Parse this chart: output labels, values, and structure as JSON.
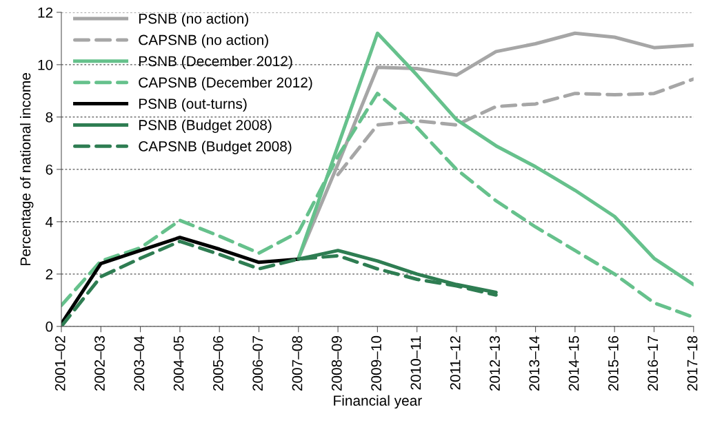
{
  "chart_data": {
    "type": "line",
    "xlabel": "Financial year",
    "ylabel": "Percentage of national income",
    "categories": [
      "2001–02",
      "2002–03",
      "2003–04",
      "2004–05",
      "2005–06",
      "2006–07",
      "2007–08",
      "2008–09",
      "2009–10",
      "2010–11",
      "2011–12",
      "2012–13",
      "2013–14",
      "2014–15",
      "2015–16",
      "2016–17",
      "2017–18"
    ],
    "series": [
      {
        "name": "PSNB (no action)",
        "color": "#a6a6a6",
        "line_style": "solid",
        "values": [
          null,
          null,
          null,
          null,
          null,
          null,
          2.6,
          6.2,
          9.9,
          9.85,
          9.6,
          10.5,
          10.8,
          11.2,
          11.05,
          10.65,
          10.75
        ]
      },
      {
        "name": "CAPSNB (no action)",
        "color": "#a6a6a6",
        "line_style": "dashed",
        "values": [
          null,
          null,
          null,
          null,
          null,
          null,
          null,
          5.8,
          7.7,
          7.85,
          7.7,
          8.4,
          8.5,
          8.9,
          8.85,
          8.9,
          9.45
        ]
      },
      {
        "name": "PSNB (December 2012)",
        "color": "#66c18c",
        "line_style": "solid",
        "values": [
          null,
          null,
          null,
          null,
          null,
          null,
          2.6,
          6.9,
          11.2,
          9.6,
          7.9,
          6.9,
          6.1,
          5.2,
          4.2,
          2.6,
          1.6
        ]
      },
      {
        "name": "CAPSNB (December 2012)",
        "color": "#66c18c",
        "line_style": "dashed",
        "values": [
          0.8,
          2.5,
          3.0,
          4.05,
          3.45,
          2.8,
          3.6,
          6.5,
          8.9,
          7.6,
          6.0,
          4.8,
          3.8,
          2.9,
          2.0,
          0.9,
          0.35
        ]
      },
      {
        "name": "PSNB (out-turns)",
        "color": "#000000",
        "line_style": "solid",
        "values": [
          0.1,
          2.4,
          2.9,
          3.4,
          2.95,
          2.45,
          2.57,
          null,
          null,
          null,
          null,
          null,
          null,
          null,
          null,
          null,
          null
        ]
      },
      {
        "name": "PSNB (Budget 2008)",
        "color": "#2e7d52",
        "line_style": "solid",
        "values": [
          null,
          null,
          null,
          null,
          null,
          null,
          2.57,
          2.9,
          2.5,
          2.0,
          1.6,
          1.3,
          null,
          null,
          null,
          null,
          null
        ]
      },
      {
        "name": "CAPSNB (Budget 2008)",
        "color": "#2e7d52",
        "line_style": "dashed",
        "values": [
          0.0,
          1.9,
          2.6,
          3.25,
          2.75,
          2.2,
          2.57,
          2.7,
          2.2,
          1.8,
          1.55,
          1.2,
          null,
          null,
          null,
          null,
          null
        ]
      }
    ],
    "ylim": [
      0,
      12
    ],
    "yticks": [
      0,
      2,
      4,
      6,
      8,
      10,
      12
    ],
    "grid": "y",
    "legend": "top left",
    "marker": "none"
  }
}
